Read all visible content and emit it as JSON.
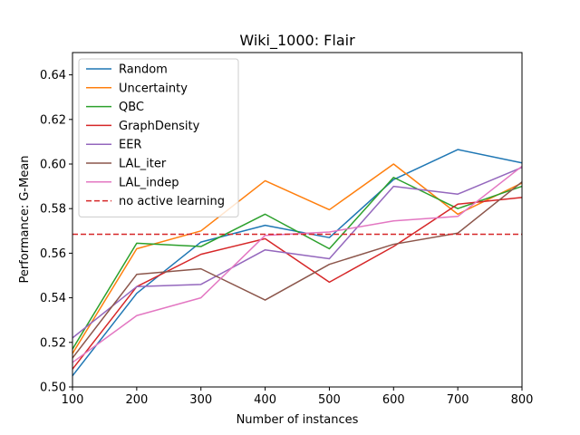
{
  "chart_data": {
    "type": "line",
    "title": "Wiki_1000: Flair",
    "xlabel": "Number of instances",
    "ylabel": "Performance: G-Mean",
    "xlim": [
      100,
      800
    ],
    "ylim": [
      0.5,
      0.65
    ],
    "x_ticks": [
      100,
      200,
      300,
      400,
      500,
      600,
      700,
      800
    ],
    "y_ticks": [
      0.5,
      0.52,
      0.54,
      0.56,
      0.58,
      0.6,
      0.62,
      0.64
    ],
    "x_tick_labels": [
      "100",
      "200",
      "300",
      "400",
      "500",
      "600",
      "700",
      "800"
    ],
    "y_tick_labels": [
      "0.50",
      "0.52",
      "0.54",
      "0.56",
      "0.58",
      "0.60",
      "0.62",
      "0.64"
    ],
    "grid": false,
    "legend_position": "top-left",
    "x": [
      100,
      200,
      300,
      400,
      500,
      600,
      700,
      800
    ],
    "series": [
      {
        "name": "Random",
        "color": "#1f77b4",
        "values": [
          0.505,
          0.542,
          0.565,
          0.5725,
          0.567,
          0.593,
          0.6065,
          0.6005
        ]
      },
      {
        "name": "Uncertainty",
        "color": "#ff7f0e",
        "values": [
          0.515,
          0.562,
          0.57,
          0.5925,
          0.5795,
          0.6,
          0.5775,
          0.5915
        ]
      },
      {
        "name": "QBC",
        "color": "#2ca02c",
        "values": [
          0.517,
          0.5645,
          0.563,
          0.5775,
          0.562,
          0.594,
          0.58,
          0.59
        ]
      },
      {
        "name": "GraphDensity",
        "color": "#d62728",
        "values": [
          0.508,
          0.545,
          0.5595,
          0.5665,
          0.547,
          0.563,
          0.582,
          0.585
        ]
      },
      {
        "name": "EER",
        "color": "#9467bd",
        "values": [
          0.522,
          0.545,
          0.546,
          0.5615,
          0.5575,
          0.59,
          0.5865,
          0.5985
        ]
      },
      {
        "name": "LAL_iter",
        "color": "#8c564b",
        "values": [
          0.513,
          0.5505,
          0.553,
          0.539,
          0.555,
          0.564,
          0.569,
          0.592
        ]
      },
      {
        "name": "LAL_indep",
        "color": "#e377c2",
        "values": [
          0.511,
          0.532,
          0.54,
          0.568,
          0.5695,
          0.5745,
          0.5765,
          0.599
        ]
      }
    ],
    "baseline": {
      "name": "no active learning",
      "color": "#d62728",
      "value": 0.5685,
      "style": "dashed"
    }
  }
}
